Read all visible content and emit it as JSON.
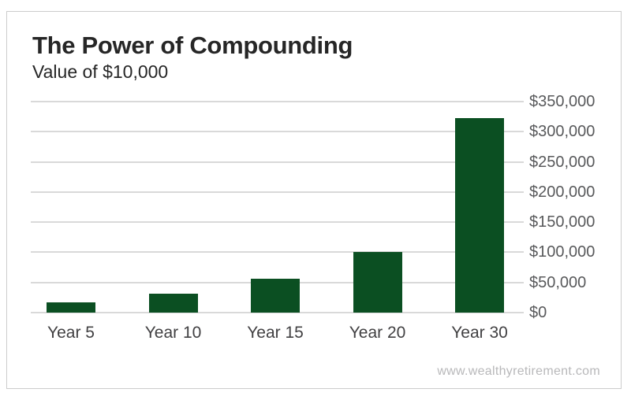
{
  "frame": {
    "watermark": "www.wealthyretirement.com"
  },
  "chart_data": {
    "type": "bar",
    "title": "The Power of Compounding",
    "subtitle": "Value of $10,000",
    "categories": [
      "Year 5",
      "Year 10",
      "Year 15",
      "Year 20",
      "Year 30"
    ],
    "values": [
      17500,
      31000,
      56000,
      100000,
      322000
    ],
    "xlabel": "",
    "ylabel": "",
    "ylim": [
      0,
      350000
    ],
    "ytick_step": 50000,
    "ytick_labels": [
      "$0",
      "$50,000",
      "$100,000",
      "$150,000",
      "$200,000",
      "$250,000",
      "$300,000",
      "$350,000"
    ],
    "y_axis_side": "right",
    "grid": true,
    "legend": "none",
    "colors": {
      "bar": "#0b4f22",
      "gridline": "#d9d9d9",
      "title_text": "#262626",
      "y_tick_text": "#58595b",
      "x_tick_text": "#414042",
      "watermark_text": "#b8b8ba",
      "frame_border": "#cccccc"
    }
  }
}
